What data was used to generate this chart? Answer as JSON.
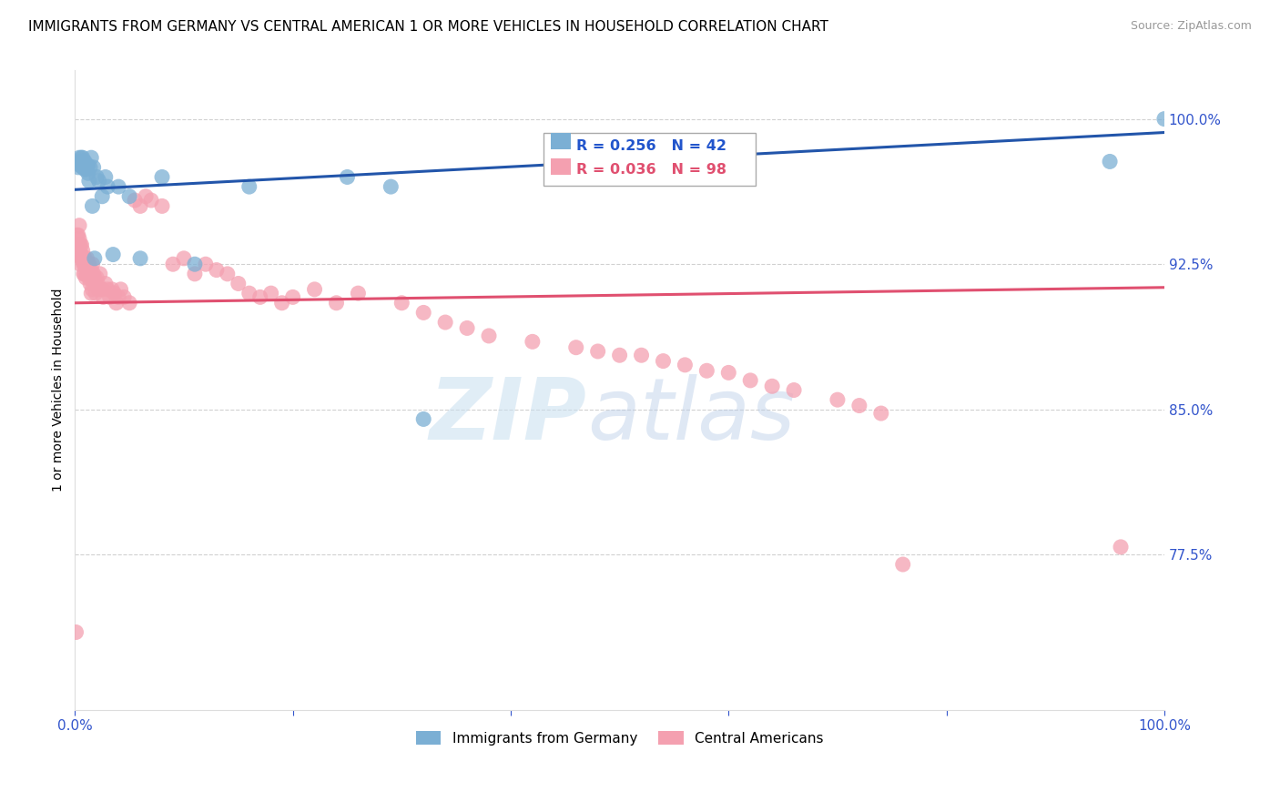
{
  "title": "IMMIGRANTS FROM GERMANY VS CENTRAL AMERICAN 1 OR MORE VEHICLES IN HOUSEHOLD CORRELATION CHART",
  "source": "Source: ZipAtlas.com",
  "ylabel": "1 or more Vehicles in Household",
  "ytick_labels": [
    "100.0%",
    "92.5%",
    "85.0%",
    "77.5%"
  ],
  "ytick_values": [
    1.0,
    0.925,
    0.85,
    0.775
  ],
  "xmin": 0.0,
  "xmax": 1.0,
  "ymin": 0.695,
  "ymax": 1.025,
  "legend_blue_label": "Immigrants from Germany",
  "legend_pink_label": "Central Americans",
  "R_blue": 0.256,
  "N_blue": 42,
  "R_pink": 0.036,
  "N_pink": 98,
  "blue_color": "#7bafd4",
  "pink_color": "#f4a0b0",
  "blue_line_color": "#2255aa",
  "pink_line_color": "#e05070",
  "watermark_zip": "ZIP",
  "watermark_atlas": "atlas",
  "blue_line_x0": 0.0,
  "blue_line_x1": 1.0,
  "blue_line_y0": 0.9635,
  "blue_line_y1": 0.993,
  "pink_line_x0": 0.0,
  "pink_line_x1": 1.0,
  "pink_line_y0": 0.905,
  "pink_line_y1": 0.913,
  "blue_x": [
    0.003,
    0.004,
    0.005,
    0.005,
    0.006,
    0.006,
    0.007,
    0.007,
    0.007,
    0.008,
    0.008,
    0.009,
    0.009,
    0.009,
    0.01,
    0.01,
    0.011,
    0.012,
    0.012,
    0.013,
    0.014,
    0.015,
    0.016,
    0.017,
    0.018,
    0.02,
    0.022,
    0.025,
    0.028,
    0.03,
    0.035,
    0.04,
    0.05,
    0.06,
    0.08,
    0.11,
    0.16,
    0.25,
    0.29,
    0.32,
    0.95,
    1.0
  ],
  "blue_y": [
    0.975,
    0.98,
    0.978,
    0.976,
    0.98,
    0.978,
    0.98,
    0.978,
    0.975,
    0.978,
    0.975,
    0.978,
    0.976,
    0.974,
    0.976,
    0.974,
    0.975,
    0.972,
    0.976,
    0.968,
    0.975,
    0.98,
    0.955,
    0.975,
    0.928,
    0.97,
    0.968,
    0.96,
    0.97,
    0.965,
    0.93,
    0.965,
    0.96,
    0.928,
    0.97,
    0.925,
    0.965,
    0.97,
    0.965,
    0.845,
    0.978,
    1.0
  ],
  "pink_x": [
    0.001,
    0.002,
    0.003,
    0.003,
    0.004,
    0.004,
    0.004,
    0.005,
    0.005,
    0.005,
    0.006,
    0.006,
    0.006,
    0.007,
    0.007,
    0.007,
    0.008,
    0.008,
    0.008,
    0.009,
    0.009,
    0.009,
    0.01,
    0.01,
    0.011,
    0.011,
    0.012,
    0.012,
    0.013,
    0.013,
    0.014,
    0.014,
    0.015,
    0.015,
    0.016,
    0.016,
    0.017,
    0.018,
    0.018,
    0.019,
    0.02,
    0.021,
    0.022,
    0.023,
    0.025,
    0.026,
    0.028,
    0.03,
    0.032,
    0.034,
    0.036,
    0.038,
    0.04,
    0.042,
    0.045,
    0.05,
    0.055,
    0.06,
    0.065,
    0.07,
    0.08,
    0.09,
    0.1,
    0.11,
    0.12,
    0.13,
    0.14,
    0.15,
    0.16,
    0.17,
    0.18,
    0.19,
    0.2,
    0.22,
    0.24,
    0.26,
    0.3,
    0.32,
    0.34,
    0.36,
    0.38,
    0.42,
    0.46,
    0.48,
    0.5,
    0.52,
    0.54,
    0.56,
    0.58,
    0.6,
    0.62,
    0.64,
    0.66,
    0.7,
    0.72,
    0.74,
    0.76,
    0.96
  ],
  "pink_y": [
    0.735,
    0.94,
    0.94,
    0.935,
    0.938,
    0.935,
    0.945,
    0.935,
    0.93,
    0.925,
    0.935,
    0.93,
    0.928,
    0.928,
    0.932,
    0.928,
    0.928,
    0.925,
    0.92,
    0.928,
    0.925,
    0.92,
    0.925,
    0.918,
    0.928,
    0.92,
    0.925,
    0.92,
    0.925,
    0.918,
    0.92,
    0.915,
    0.922,
    0.91,
    0.925,
    0.912,
    0.92,
    0.918,
    0.915,
    0.91,
    0.918,
    0.915,
    0.912,
    0.92,
    0.912,
    0.908,
    0.915,
    0.912,
    0.908,
    0.912,
    0.91,
    0.905,
    0.908,
    0.912,
    0.908,
    0.905,
    0.958,
    0.955,
    0.96,
    0.958,
    0.955,
    0.925,
    0.928,
    0.92,
    0.925,
    0.922,
    0.92,
    0.915,
    0.91,
    0.908,
    0.91,
    0.905,
    0.908,
    0.912,
    0.905,
    0.91,
    0.905,
    0.9,
    0.895,
    0.892,
    0.888,
    0.885,
    0.882,
    0.88,
    0.878,
    0.878,
    0.875,
    0.873,
    0.87,
    0.869,
    0.865,
    0.862,
    0.86,
    0.855,
    0.852,
    0.848,
    0.77,
    0.779
  ]
}
